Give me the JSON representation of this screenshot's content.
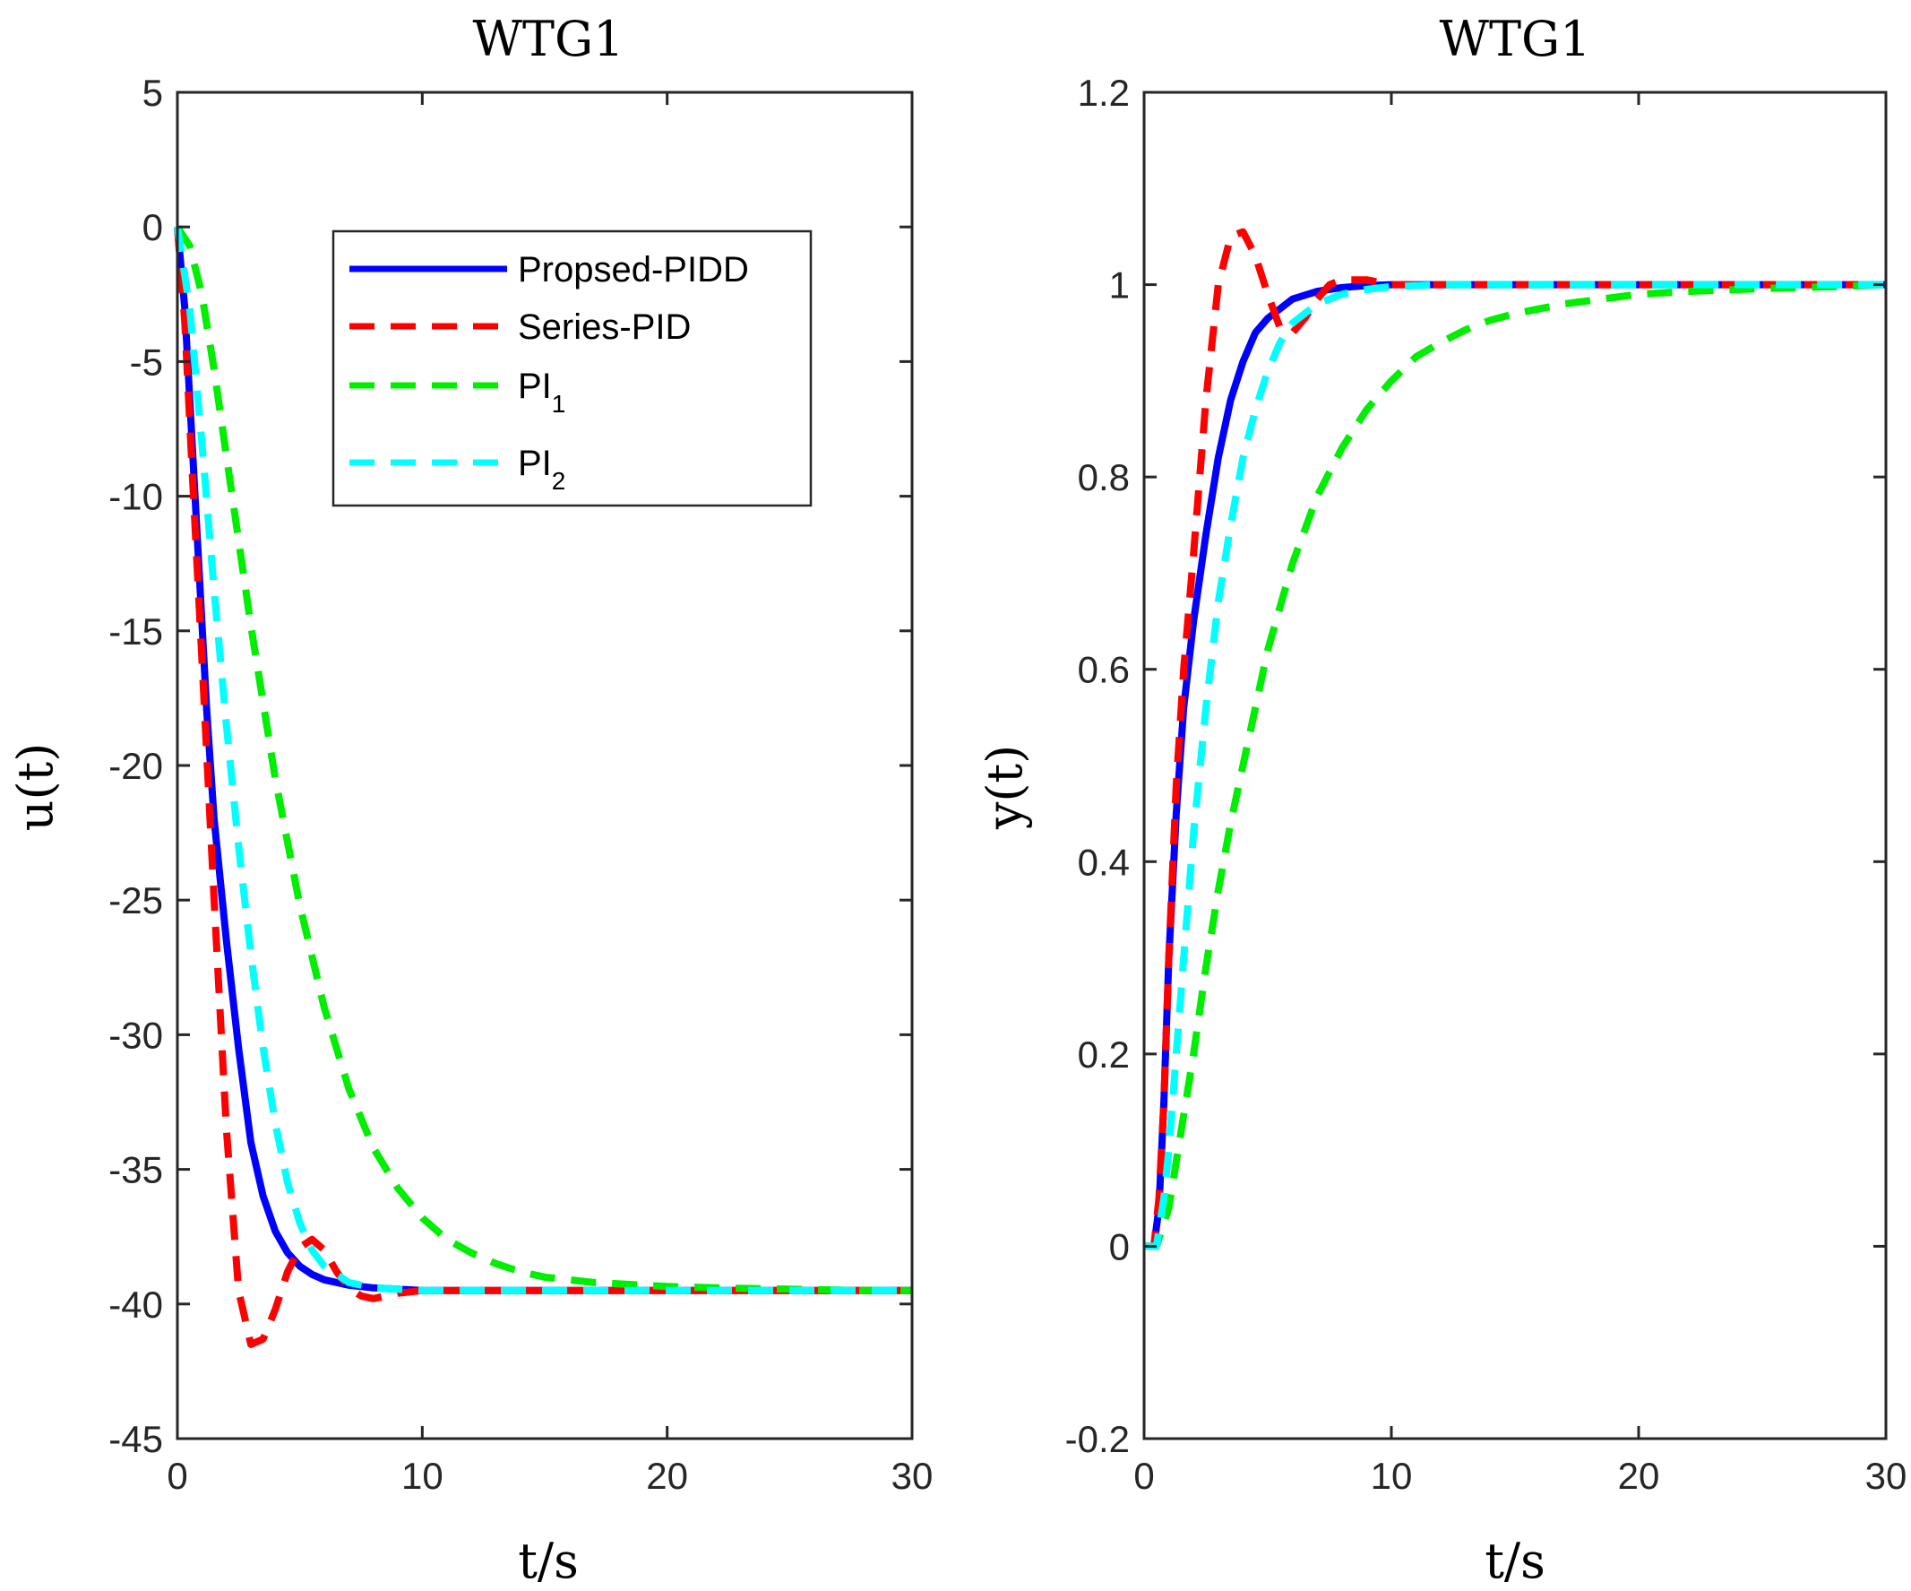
{
  "chart_data": [
    {
      "type": "line",
      "title": "WTG1",
      "xlabel": "t/s",
      "ylabel": "u(t)",
      "xlim": [
        0,
        30
      ],
      "ylim": [
        -45,
        5
      ],
      "xticks": [
        0,
        10,
        20,
        30
      ],
      "yticks": [
        5,
        0,
        -5,
        -10,
        -15,
        -20,
        -25,
        -30,
        -35,
        -40,
        -45
      ],
      "grid": false,
      "legend_position": "top-right",
      "series": [
        {
          "name": "Propsed-PIDD",
          "color": "#0000ff",
          "dash": "solid",
          "x": [
            0,
            0.3,
            0.6,
            0.9,
            1.2,
            1.5,
            2.0,
            2.5,
            3.0,
            3.5,
            4.0,
            4.5,
            5.0,
            5.5,
            6.0,
            7.0,
            8.0,
            9.0,
            10.0,
            12.0,
            15.0,
            20.0,
            25.0,
            30.0
          ],
          "y": [
            0,
            -3,
            -8,
            -13,
            -18,
            -22,
            -26.5,
            -30.5,
            -34,
            -36,
            -37.3,
            -38.1,
            -38.6,
            -38.9,
            -39.1,
            -39.3,
            -39.4,
            -39.45,
            -39.5,
            -39.5,
            -39.5,
            -39.5,
            -39.5,
            -39.5
          ]
        },
        {
          "name": "Series-PID",
          "color": "#ff0000",
          "dash": "dashed",
          "x": [
            0,
            0.3,
            0.6,
            1.0,
            1.5,
            2.0,
            2.5,
            3.0,
            3.5,
            4.0,
            4.5,
            5.0,
            5.5,
            6.0,
            6.5,
            7.0,
            7.5,
            8.0,
            9.0,
            10.0,
            12.0,
            15.0,
            20.0,
            25.0,
            30.0
          ],
          "y": [
            0,
            -3.5,
            -9,
            -16,
            -25,
            -33.5,
            -39.5,
            -41.5,
            -41.3,
            -40.2,
            -38.8,
            -37.9,
            -37.6,
            -38,
            -38.8,
            -39.4,
            -39.7,
            -39.8,
            -39.6,
            -39.5,
            -39.5,
            -39.5,
            -39.5,
            -39.5,
            -39.5
          ]
        },
        {
          "name": "PI1",
          "color": "#00ee00",
          "dash": "dashed",
          "x": [
            0,
            0.5,
            1.0,
            1.5,
            2.0,
            3.0,
            4.0,
            5.0,
            6.0,
            7.0,
            8.0,
            9.0,
            10.0,
            11.0,
            12.0,
            13.0,
            14.0,
            15.0,
            17.0,
            20.0,
            22.0,
            25.0,
            28.0,
            30.0
          ],
          "y": [
            0,
            -0.7,
            -2.5,
            -5.3,
            -8.5,
            -14.8,
            -20.5,
            -25.2,
            -29,
            -32,
            -34.2,
            -35.7,
            -36.8,
            -37.6,
            -38.1,
            -38.5,
            -38.8,
            -39,
            -39.2,
            -39.35,
            -39.4,
            -39.45,
            -39.5,
            -39.5
          ]
        },
        {
          "name": "PI2",
          "color": "#00ffff",
          "dash": "dashed",
          "x": [
            0,
            0.5,
            1.0,
            1.5,
            2.0,
            2.5,
            3.0,
            3.5,
            4.0,
            4.5,
            5.0,
            5.5,
            6.0,
            7.0,
            8.0,
            9.0,
            10.0,
            12.0,
            15.0,
            20.0,
            25.0,
            30.0
          ],
          "y": [
            0,
            -3,
            -8,
            -13.5,
            -18.5,
            -23,
            -27,
            -30.5,
            -33.3,
            -35.5,
            -37,
            -38,
            -38.6,
            -39.2,
            -39.4,
            -39.45,
            -39.5,
            -39.5,
            -39.5,
            -39.5,
            -39.5,
            -39.5
          ]
        }
      ],
      "legend_entries": [
        {
          "label": "Propsed-PIDD",
          "sub": ""
        },
        {
          "label": "Series-PID",
          "sub": ""
        },
        {
          "label": "PI",
          "sub": "1"
        },
        {
          "label": "PI",
          "sub": "2"
        }
      ]
    },
    {
      "type": "line",
      "title": "WTG1",
      "xlabel": "t/s",
      "ylabel": "y(t)",
      "xlim": [
        0,
        30
      ],
      "ylim": [
        -0.2,
        1.2
      ],
      "xticks": [
        0,
        10,
        20,
        30
      ],
      "yticks": [
        1.2,
        1,
        0.8,
        0.6,
        0.4,
        0.2,
        0,
        -0.2
      ],
      "grid": false,
      "series": [
        {
          "name": "Propsed-PIDD",
          "color": "#0000ff",
          "dash": "solid",
          "x": [
            0,
            0.4,
            0.6,
            0.8,
            1.0,
            1.3,
            1.6,
            2.0,
            2.5,
            3.0,
            3.5,
            4.0,
            4.5,
            5.0,
            5.5,
            6.0,
            7.0,
            8.0,
            9.0,
            10.0,
            15.0,
            20.0,
            25.0,
            30.0
          ],
          "y": [
            0,
            0,
            0.04,
            0.15,
            0.3,
            0.45,
            0.56,
            0.65,
            0.74,
            0.82,
            0.88,
            0.92,
            0.95,
            0.965,
            0.975,
            0.985,
            0.993,
            0.997,
            0.999,
            1,
            1,
            1,
            1,
            1
          ]
        },
        {
          "name": "Series-PID",
          "color": "#ff0000",
          "dash": "dashed",
          "x": [
            0,
            0.4,
            0.6,
            0.8,
            1.0,
            1.3,
            1.6,
            2.0,
            2.5,
            3.0,
            3.5,
            4.0,
            4.5,
            5.0,
            5.5,
            6.0,
            6.5,
            7.0,
            7.5,
            8.0,
            9.0,
            10.0,
            12.0,
            15.0,
            20.0,
            30.0
          ],
          "y": [
            0,
            0,
            0.05,
            0.15,
            0.3,
            0.48,
            0.6,
            0.72,
            0.88,
            1.0,
            1.05,
            1.055,
            1.03,
            0.99,
            0.955,
            0.95,
            0.965,
            0.985,
            1.0,
            1.005,
            1.005,
            1.0,
            1.0,
            1.0,
            1.0,
            1.0
          ]
        },
        {
          "name": "PI1",
          "color": "#00ee00",
          "dash": "dashed",
          "x": [
            0,
            0.5,
            1.0,
            1.5,
            2.0,
            2.5,
            3.0,
            3.5,
            4.0,
            5.0,
            6.0,
            7.0,
            8.0,
            9.0,
            10.0,
            11.0,
            12.0,
            13.0,
            14.0,
            15.0,
            17.0,
            20.0,
            22.0,
            25.0,
            28.0,
            30.0
          ],
          "y": [
            0,
            0,
            0.04,
            0.12,
            0.2,
            0.29,
            0.37,
            0.44,
            0.5,
            0.62,
            0.71,
            0.78,
            0.83,
            0.87,
            0.9,
            0.925,
            0.94,
            0.953,
            0.963,
            0.97,
            0.98,
            0.99,
            0.993,
            0.996,
            0.998,
            1.0
          ]
        },
        {
          "name": "PI2",
          "color": "#00ffff",
          "dash": "dashed",
          "x": [
            0,
            0.5,
            0.8,
            1.0,
            1.3,
            1.6,
            2.0,
            2.5,
            3.0,
            3.5,
            4.0,
            4.5,
            5.0,
            5.5,
            6.0,
            7.0,
            8.0,
            9.0,
            10.0,
            12.0,
            15.0,
            20.0,
            30.0
          ],
          "y": [
            0,
            0,
            0.05,
            0.1,
            0.2,
            0.3,
            0.43,
            0.56,
            0.67,
            0.75,
            0.82,
            0.87,
            0.91,
            0.94,
            0.96,
            0.98,
            0.99,
            0.995,
            0.998,
            1,
            1,
            1,
            1
          ]
        }
      ]
    }
  ]
}
